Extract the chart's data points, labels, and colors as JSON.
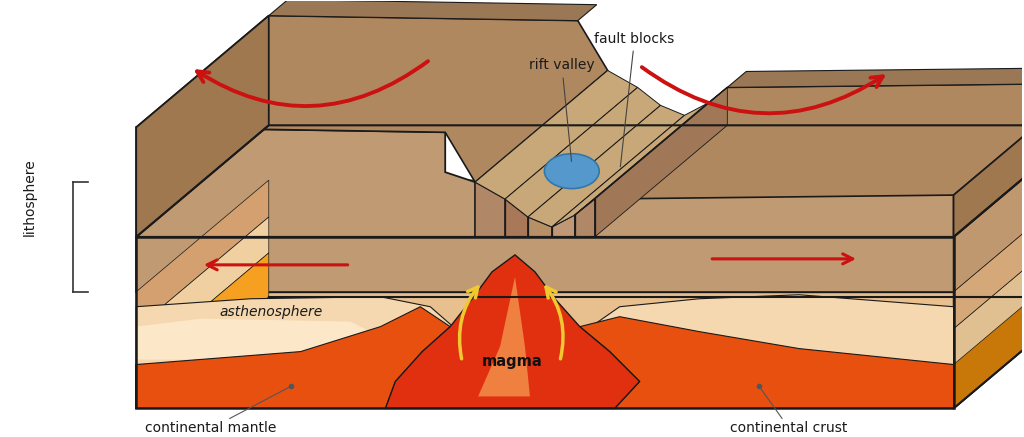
{
  "background_color": "#ffffff",
  "labels": {
    "fault_blocks": "fault blocks",
    "rift_valley": "rift valley",
    "lithosphere": "lithosphere",
    "asthenosphere": "asthenosphere",
    "magma": "magma",
    "continental_mantle": "continental mantle",
    "continental_crust": "continental crust"
  },
  "colors": {
    "crust_brown": "#c09a72",
    "crust_brown_dark": "#a07850",
    "crust_brown_mid": "#b08860",
    "crust_side": "#a07850",
    "crust_front": "#c8a878",
    "mantle_orange": "#f5a020",
    "mantle_peach": "#f7c878",
    "asth_cream": "#f5d8b0",
    "asth_light": "#fce8c8",
    "magma_red": "#e03010",
    "magma_orange": "#f06020",
    "magma_bright": "#f08040",
    "lake_blue": "#5599cc",
    "lake_edge": "#3377aa",
    "arrow_red": "#cc1111",
    "arrow_yellow": "#f0c830",
    "outline": "#1a1a1a",
    "right_side_dark": "#c87010"
  },
  "figure_width": 10.24,
  "figure_height": 4.37,
  "dpi": 100
}
